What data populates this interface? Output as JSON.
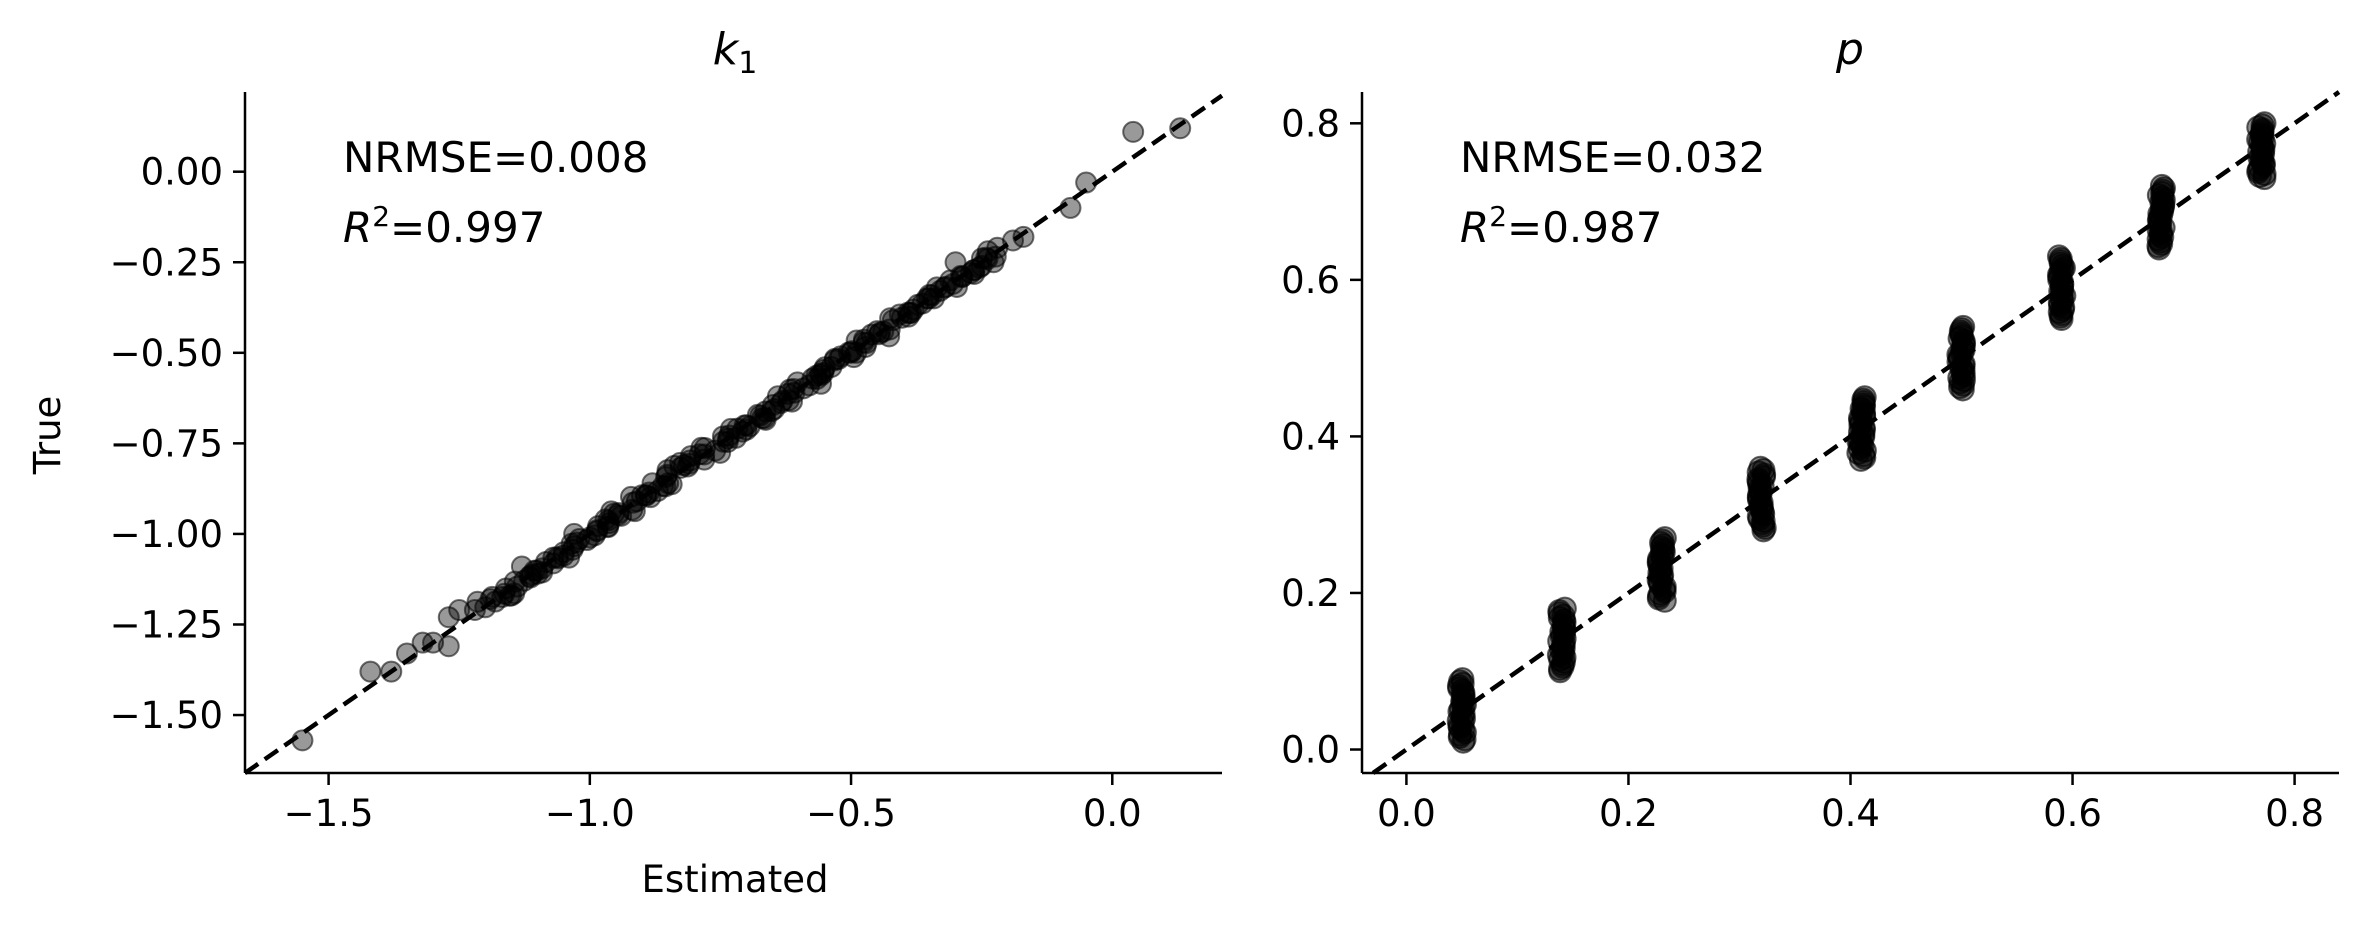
{
  "colors": {
    "marker": "#000000",
    "reference_line": "#000000",
    "axes": "#000000"
  },
  "chart_data": [
    {
      "type": "scatter",
      "title": "k",
      "title_subscript": "1",
      "xlabel": "Estimated",
      "ylabel": "True",
      "xlim": [
        -1.66,
        0.21
      ],
      "ylim": [
        -1.66,
        0.22
      ],
      "xticks": [
        -1.5,
        -1.0,
        -0.5,
        0.0
      ],
      "xtick_labels": [
        "−1.5",
        "−1.0",
        "−0.5",
        "0.0"
      ],
      "yticks": [
        0.0,
        -0.25,
        -0.5,
        -0.75,
        -1.0,
        -1.25,
        -1.5
      ],
      "ytick_labels": [
        "0.00",
        "−0.25",
        "−0.50",
        "−0.75",
        "−1.00",
        "−1.25",
        "−1.50"
      ],
      "grid": false,
      "legend": "none",
      "reference_line": "y = x (dashed)",
      "annotations": {
        "nrmse": "NRMSE=0.008",
        "r2_symbol": "R",
        "r2_power": "2",
        "r2_value": "=0.997"
      },
      "points": [
        {
          "x": -1.55,
          "y": -1.57
        },
        {
          "x": -1.42,
          "y": -1.38
        },
        {
          "x": -1.38,
          "y": -1.38
        },
        {
          "x": -1.35,
          "y": -1.33
        },
        {
          "x": -1.32,
          "y": -1.3
        },
        {
          "x": -1.3,
          "y": -1.3
        },
        {
          "x": -1.27,
          "y": -1.31
        },
        {
          "x": -1.27,
          "y": -1.23
        },
        {
          "x": -1.25,
          "y": -1.21
        },
        {
          "x": -1.22,
          "y": -1.21
        },
        {
          "x": -1.19,
          "y": -1.18
        },
        {
          "x": -1.15,
          "y": -1.17
        },
        {
          "x": -1.13,
          "y": -1.09
        },
        {
          "x": -1.1,
          "y": -1.11
        },
        {
          "x": -1.05,
          "y": -1.06
        },
        {
          "x": -1.03,
          "y": -1.0
        },
        {
          "x": -1.0,
          "y": -1.01
        },
        {
          "x": -0.97,
          "y": -0.96
        },
        {
          "x": -0.94,
          "y": -0.95
        },
        {
          "x": -0.91,
          "y": -0.91
        },
        {
          "x": -0.88,
          "y": -0.86
        },
        {
          "x": -0.85,
          "y": -0.86
        },
        {
          "x": -0.82,
          "y": -0.81
        },
        {
          "x": -0.79,
          "y": -0.78
        },
        {
          "x": -0.76,
          "y": -0.77
        },
        {
          "x": -0.73,
          "y": -0.71
        },
        {
          "x": -0.7,
          "y": -0.7
        },
        {
          "x": -0.67,
          "y": -0.68
        },
        {
          "x": -0.64,
          "y": -0.62
        },
        {
          "x": -0.61,
          "y": -0.6
        },
        {
          "x": -0.58,
          "y": -0.59
        },
        {
          "x": -0.55,
          "y": -0.54
        },
        {
          "x": -0.52,
          "y": -0.51
        },
        {
          "x": -0.49,
          "y": -0.5
        },
        {
          "x": -0.45,
          "y": -0.44
        },
        {
          "x": -0.42,
          "y": -0.41
        },
        {
          "x": -0.39,
          "y": -0.4
        },
        {
          "x": -0.35,
          "y": -0.34
        },
        {
          "x": -0.31,
          "y": -0.3
        },
        {
          "x": -0.3,
          "y": -0.25
        },
        {
          "x": -0.25,
          "y": -0.26
        },
        {
          "x": -0.22,
          "y": -0.21
        },
        {
          "x": -0.19,
          "y": -0.19
        },
        {
          "x": -0.17,
          "y": -0.18
        },
        {
          "x": -0.08,
          "y": -0.1
        },
        {
          "x": -0.05,
          "y": -0.03
        },
        {
          "x": 0.04,
          "y": 0.11
        },
        {
          "x": 0.13,
          "y": 0.12
        }
      ]
    },
    {
      "type": "scatter",
      "title": "p",
      "xlabel": "",
      "ylabel": "",
      "xlim": [
        -0.04,
        0.84
      ],
      "ylim": [
        -0.03,
        0.84
      ],
      "xticks": [
        0.0,
        0.2,
        0.4,
        0.6,
        0.8
      ],
      "xtick_labels": [
        "0.0",
        "0.2",
        "0.4",
        "0.6",
        "0.8"
      ],
      "yticks": [
        0.0,
        0.2,
        0.4,
        0.6,
        0.8
      ],
      "ytick_labels": [
        "0.0",
        "0.2",
        "0.4",
        "0.6",
        "0.8"
      ],
      "grid": false,
      "legend": "none",
      "reference_line": "y = x (dashed)",
      "annotations": {
        "nrmse": "NRMSE=0.032",
        "r2_symbol": "R",
        "r2_power": "2",
        "r2_value": "=0.987"
      },
      "clusters": [
        {
          "x": 0.05,
          "y_min": 0.01,
          "y_max": 0.09
        },
        {
          "x": 0.14,
          "y_min": 0.1,
          "y_max": 0.18
        },
        {
          "x": 0.23,
          "y_min": 0.19,
          "y_max": 0.27
        },
        {
          "x": 0.32,
          "y_min": 0.28,
          "y_max": 0.36
        },
        {
          "x": 0.41,
          "y_min": 0.37,
          "y_max": 0.45
        },
        {
          "x": 0.5,
          "y_min": 0.46,
          "y_max": 0.54
        },
        {
          "x": 0.59,
          "y_min": 0.55,
          "y_max": 0.63
        },
        {
          "x": 0.68,
          "y_min": 0.64,
          "y_max": 0.72
        },
        {
          "x": 0.77,
          "y_min": 0.73,
          "y_max": 0.8
        }
      ]
    }
  ]
}
